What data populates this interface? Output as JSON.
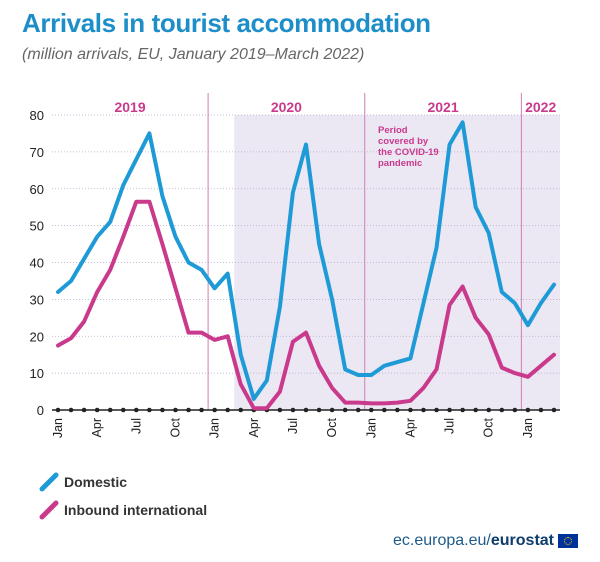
{
  "title": "Arrivals in tourist accommodation",
  "subtitle": "(million arrivals, EU, January 2019–March 2022)",
  "footer": {
    "domain": "ec.europa.eu/",
    "brand": "eurostat"
  },
  "colors": {
    "domestic": "#1e9bd7",
    "inbound": "#c93a8c",
    "year_label": "#c93a8c",
    "shade": "#ece8f3"
  },
  "chart_data": {
    "type": "line",
    "ylim": [
      0,
      80
    ],
    "y_ticks": [
      0,
      10,
      20,
      30,
      40,
      50,
      60,
      70,
      80
    ],
    "x_tick_labels": [
      "Jan",
      "Apr",
      "Jul",
      "Oct",
      "Jan",
      "Apr",
      "Jul",
      "Oct",
      "Jan",
      "Apr",
      "Jul",
      "Oct",
      "Jan"
    ],
    "x_tick_month_index": [
      0,
      3,
      6,
      9,
      12,
      15,
      18,
      21,
      24,
      27,
      30,
      33,
      36
    ],
    "years": [
      {
        "label": "2019",
        "start": 0,
        "end": 12
      },
      {
        "label": "2020",
        "start": 12,
        "end": 24
      },
      {
        "label": "2021",
        "start": 24,
        "end": 36
      },
      {
        "label": "2022",
        "start": 36,
        "end": 39
      }
    ],
    "months": [
      "2019-01",
      "2019-02",
      "2019-03",
      "2019-04",
      "2019-05",
      "2019-06",
      "2019-07",
      "2019-08",
      "2019-09",
      "2019-10",
      "2019-11",
      "2019-12",
      "2020-01",
      "2020-02",
      "2020-03",
      "2020-04",
      "2020-05",
      "2020-06",
      "2020-07",
      "2020-08",
      "2020-09",
      "2020-10",
      "2020-11",
      "2020-12",
      "2021-01",
      "2021-02",
      "2021-03",
      "2021-04",
      "2021-05",
      "2021-06",
      "2021-07",
      "2021-08",
      "2021-09",
      "2021-10",
      "2021-11",
      "2021-12",
      "2022-01",
      "2022-02",
      "2022-03"
    ],
    "covid_period": {
      "start_month": "2020-03",
      "end_month": "2022-03",
      "note": "Period covered by the COVID-19 pandemic"
    },
    "series": [
      {
        "name": "Domestic",
        "values": [
          32,
          35,
          41,
          47,
          51,
          61,
          68,
          75,
          58,
          47,
          40,
          38,
          33,
          37,
          15,
          3,
          8,
          28,
          59,
          72,
          45,
          30,
          11,
          9.5,
          9.5,
          12,
          13,
          14,
          29,
          44,
          72,
          78,
          55,
          48,
          32,
          29,
          23,
          29,
          34
        ]
      },
      {
        "name": "Inbound international",
        "values": [
          17.5,
          19.5,
          24,
          32,
          38,
          47,
          56.5,
          56.5,
          45,
          33,
          21,
          21,
          19,
          20,
          7,
          0.5,
          0.5,
          5,
          18.5,
          21,
          12,
          6,
          2,
          2,
          1.8,
          1.8,
          2,
          2.5,
          6,
          11,
          28.5,
          33.5,
          25,
          20.5,
          11.5,
          10,
          9,
          12,
          15
        ]
      }
    ]
  }
}
